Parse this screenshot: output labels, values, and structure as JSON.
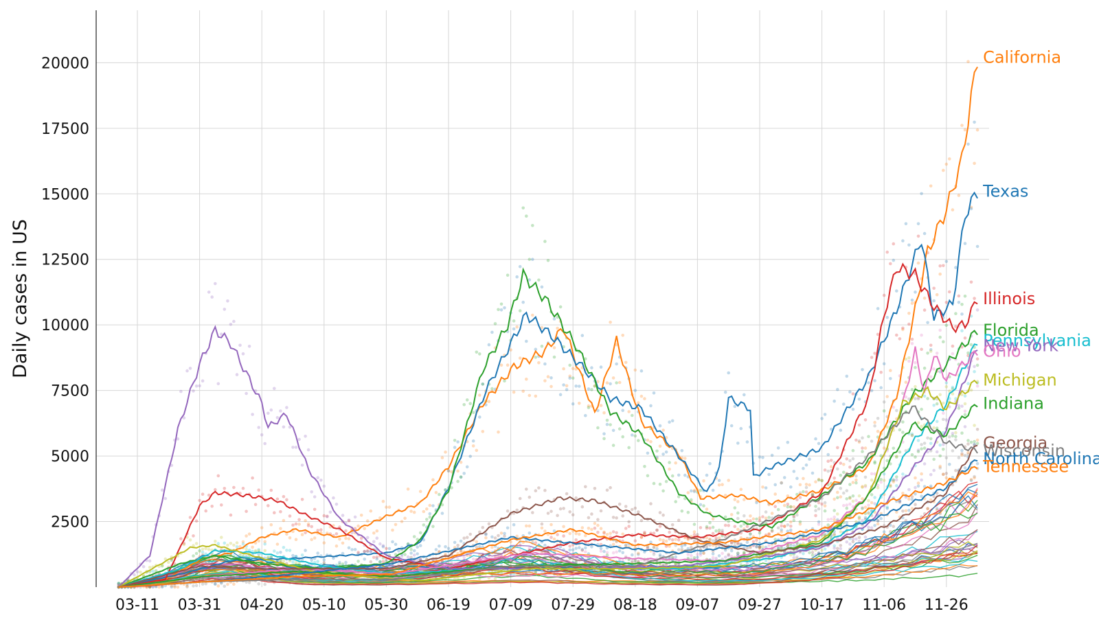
{
  "chart_data": {
    "type": "line",
    "title": "",
    "xlabel": "",
    "ylabel": "Daily cases in US",
    "x_dates": [
      "2020-03-05",
      "2020-12-06"
    ],
    "x_ticks": [
      "03-11",
      "03-31",
      "04-20",
      "05-10",
      "05-30",
      "06-19",
      "07-09",
      "07-29",
      "08-18",
      "09-07",
      "09-27",
      "10-17",
      "11-06",
      "11-26"
    ],
    "x_tick_dates": [
      "2020-03-11",
      "2020-03-31",
      "2020-04-20",
      "2020-05-10",
      "2020-05-30",
      "2020-06-19",
      "2020-07-09",
      "2020-07-29",
      "2020-08-18",
      "2020-09-07",
      "2020-09-27",
      "2020-10-17",
      "2020-11-06",
      "2020-11-26"
    ],
    "y_ticks": [
      "2500",
      "5000",
      "7500",
      "10000",
      "12500",
      "15000",
      "17500",
      "20000"
    ],
    "y_tick_values": [
      2500,
      5000,
      7500,
      10000,
      12500,
      15000,
      17500,
      20000
    ],
    "ylim": [
      0,
      22000
    ],
    "grid": true,
    "series": [
      {
        "name": "California",
        "color": "#ff7f0e",
        "points": [
          [
            "2020-03-05",
            0
          ],
          [
            "2020-03-20",
            300
          ],
          [
            "2020-04-01",
            1100
          ],
          [
            "2020-04-10",
            1300
          ],
          [
            "2020-04-20",
            1900
          ],
          [
            "2020-05-01",
            2200
          ],
          [
            "2020-05-15",
            1900
          ],
          [
            "2020-05-30",
            2700
          ],
          [
            "2020-06-10",
            3200
          ],
          [
            "2020-06-19",
            4600
          ],
          [
            "2020-06-30",
            7000
          ],
          [
            "2020-07-10",
            8400
          ],
          [
            "2020-07-20",
            9000
          ],
          [
            "2020-07-26",
            9900
          ],
          [
            "2020-08-05",
            6600
          ],
          [
            "2020-08-12",
            9400
          ],
          [
            "2020-08-20",
            6300
          ],
          [
            "2020-09-01",
            5100
          ],
          [
            "2020-09-08",
            3400
          ],
          [
            "2020-09-20",
            3500
          ],
          [
            "2020-10-01",
            3200
          ],
          [
            "2020-10-17",
            3700
          ],
          [
            "2020-11-01",
            4600
          ],
          [
            "2020-11-10",
            7300
          ],
          [
            "2020-11-20",
            12800
          ],
          [
            "2020-11-26",
            14400
          ],
          [
            "2020-12-01",
            16300
          ],
          [
            "2020-12-06",
            20200
          ]
        ]
      },
      {
        "name": "Texas",
        "color": "#1f77b4",
        "points": [
          [
            "2020-03-05",
            0
          ],
          [
            "2020-03-25",
            500
          ],
          [
            "2020-04-10",
            1000
          ],
          [
            "2020-05-01",
            1100
          ],
          [
            "2020-05-30",
            1300
          ],
          [
            "2020-06-10",
            1700
          ],
          [
            "2020-06-19",
            3800
          ],
          [
            "2020-07-01",
            7500
          ],
          [
            "2020-07-14",
            10400
          ],
          [
            "2020-07-22",
            9600
          ],
          [
            "2020-08-01",
            8400
          ],
          [
            "2020-08-10",
            7200
          ],
          [
            "2020-08-20",
            6800
          ],
          [
            "2020-09-01",
            5000
          ],
          [
            "2020-09-10",
            3600
          ],
          [
            "2020-09-14",
            4500
          ],
          [
            "2020-09-17",
            7200
          ],
          [
            "2020-09-24",
            6800
          ],
          [
            "2020-09-25",
            4200
          ],
          [
            "2020-10-01",
            4600
          ],
          [
            "2020-10-17",
            5300
          ],
          [
            "2020-11-01",
            8000
          ],
          [
            "2020-11-10",
            10600
          ],
          [
            "2020-11-18",
            13300
          ],
          [
            "2020-11-22",
            10300
          ],
          [
            "2020-11-28",
            10800
          ],
          [
            "2020-12-02",
            14200
          ],
          [
            "2020-12-06",
            15100
          ]
        ]
      },
      {
        "name": "Illinois",
        "color": "#d62728",
        "points": [
          [
            "2020-03-05",
            0
          ],
          [
            "2020-03-20",
            300
          ],
          [
            "2020-03-31",
            3100
          ],
          [
            "2020-04-05",
            3600
          ],
          [
            "2020-04-15",
            3500
          ],
          [
            "2020-04-25",
            3300
          ],
          [
            "2020-05-05",
            2700
          ],
          [
            "2020-05-15",
            2200
          ],
          [
            "2020-05-30",
            1100
          ],
          [
            "2020-06-19",
            700
          ],
          [
            "2020-07-09",
            1200
          ],
          [
            "2020-07-29",
            1700
          ],
          [
            "2020-08-18",
            2000
          ],
          [
            "2020-09-07",
            1900
          ],
          [
            "2020-09-27",
            2200
          ],
          [
            "2020-10-17",
            3600
          ],
          [
            "2020-11-01",
            7200
          ],
          [
            "2020-11-06",
            10400
          ],
          [
            "2020-11-10",
            12200
          ],
          [
            "2020-11-16",
            11900
          ],
          [
            "2020-11-22",
            10700
          ],
          [
            "2020-11-28",
            9900
          ],
          [
            "2020-12-02",
            10000
          ],
          [
            "2020-12-06",
            11000
          ]
        ]
      },
      {
        "name": "Florida",
        "color": "#2ca02c",
        "points": [
          [
            "2020-03-05",
            0
          ],
          [
            "2020-03-25",
            900
          ],
          [
            "2020-04-05",
            1200
          ],
          [
            "2020-04-20",
            900
          ],
          [
            "2020-05-10",
            700
          ],
          [
            "2020-05-30",
            900
          ],
          [
            "2020-06-10",
            1800
          ],
          [
            "2020-06-19",
            3700
          ],
          [
            "2020-06-30",
            8300
          ],
          [
            "2020-07-08",
            10000
          ],
          [
            "2020-07-13",
            11900
          ],
          [
            "2020-07-20",
            11000
          ],
          [
            "2020-07-30",
            9200
          ],
          [
            "2020-08-10",
            6700
          ],
          [
            "2020-08-20",
            5800
          ],
          [
            "2020-09-01",
            3600
          ],
          [
            "2020-09-10",
            2800
          ],
          [
            "2020-09-20",
            2500
          ],
          [
            "2020-10-01",
            2300
          ],
          [
            "2020-10-17",
            3500
          ],
          [
            "2020-11-01",
            4800
          ],
          [
            "2020-11-15",
            7300
          ],
          [
            "2020-11-26",
            8500
          ],
          [
            "2020-12-06",
            9800
          ]
        ]
      },
      {
        "name": "Pennsylvania",
        "color": "#17becf",
        "points": [
          [
            "2020-03-05",
            0
          ],
          [
            "2020-03-25",
            700
          ],
          [
            "2020-04-05",
            1400
          ],
          [
            "2020-04-20",
            1300
          ],
          [
            "2020-05-10",
            800
          ],
          [
            "2020-06-01",
            500
          ],
          [
            "2020-07-01",
            700
          ],
          [
            "2020-08-01",
            700
          ],
          [
            "2020-09-01",
            700
          ],
          [
            "2020-10-01",
            1100
          ],
          [
            "2020-10-17",
            1600
          ],
          [
            "2020-11-01",
            2600
          ],
          [
            "2020-11-15",
            5500
          ],
          [
            "2020-11-26",
            7000
          ],
          [
            "2020-12-06",
            9400
          ]
        ]
      },
      {
        "name": "New York",
        "color": "#9467bd",
        "points": [
          [
            "2020-03-05",
            0
          ],
          [
            "2020-03-15",
            1200
          ],
          [
            "2020-03-24",
            6000
          ],
          [
            "2020-03-31",
            8500
          ],
          [
            "2020-04-05",
            9800
          ],
          [
            "2020-04-10",
            9300
          ],
          [
            "2020-04-20",
            7000
          ],
          [
            "2020-04-22",
            6100
          ],
          [
            "2020-04-28",
            6600
          ],
          [
            "2020-05-05",
            4500
          ],
          [
            "2020-05-15",
            2600
          ],
          [
            "2020-05-30",
            1200
          ],
          [
            "2020-06-19",
            700
          ],
          [
            "2020-07-09",
            700
          ],
          [
            "2020-08-01",
            700
          ],
          [
            "2020-09-01",
            800
          ],
          [
            "2020-10-01",
            1200
          ],
          [
            "2020-10-17",
            1500
          ],
          [
            "2020-11-01",
            2400
          ],
          [
            "2020-11-15",
            4500
          ],
          [
            "2020-11-26",
            6000
          ],
          [
            "2020-12-06",
            9200
          ]
        ]
      },
      {
        "name": "Ohio",
        "color": "#e377c2",
        "points": [
          [
            "2020-03-05",
            0
          ],
          [
            "2020-04-01",
            400
          ],
          [
            "2020-05-01",
            700
          ],
          [
            "2020-06-01",
            500
          ],
          [
            "2020-07-15",
            1300
          ],
          [
            "2020-08-15",
            1100
          ],
          [
            "2020-09-15",
            1000
          ],
          [
            "2020-10-17",
            2000
          ],
          [
            "2020-11-01",
            3500
          ],
          [
            "2020-11-12",
            7000
          ],
          [
            "2020-11-16",
            9000
          ],
          [
            "2020-11-19",
            7400
          ],
          [
            "2020-11-22",
            8900
          ],
          [
            "2020-11-26",
            7900
          ],
          [
            "2020-12-06",
            9000
          ]
        ]
      },
      {
        "name": "Michigan",
        "color": "#bcbd22",
        "points": [
          [
            "2020-03-05",
            0
          ],
          [
            "2020-03-28",
            1500
          ],
          [
            "2020-04-05",
            1600
          ],
          [
            "2020-04-20",
            1100
          ],
          [
            "2020-05-10",
            500
          ],
          [
            "2020-06-10",
            250
          ],
          [
            "2020-07-15",
            700
          ],
          [
            "2020-08-15",
            700
          ],
          [
            "2020-09-15",
            800
          ],
          [
            "2020-10-17",
            1800
          ],
          [
            "2020-11-01",
            3500
          ],
          [
            "2020-11-12",
            7000
          ],
          [
            "2020-11-20",
            7500
          ],
          [
            "2020-11-26",
            6800
          ],
          [
            "2020-12-06",
            7900
          ]
        ]
      },
      {
        "name": "Indiana",
        "color": "#2ca02c",
        "points": [
          [
            "2020-03-05",
            0
          ],
          [
            "2020-04-01",
            400
          ],
          [
            "2020-05-01",
            600
          ],
          [
            "2020-06-01",
            400
          ],
          [
            "2020-07-09",
            800
          ],
          [
            "2020-08-18",
            900
          ],
          [
            "2020-09-15",
            1000
          ],
          [
            "2020-10-17",
            1700
          ],
          [
            "2020-11-01",
            3500
          ],
          [
            "2020-11-15",
            6200
          ],
          [
            "2020-11-26",
            5800
          ],
          [
            "2020-12-06",
            7000
          ]
        ]
      },
      {
        "name": "Georgia",
        "color": "#8c564b",
        "points": [
          [
            "2020-03-05",
            0
          ],
          [
            "2020-03-31",
            800
          ],
          [
            "2020-04-20",
            700
          ],
          [
            "2020-05-30",
            700
          ],
          [
            "2020-06-19",
            1200
          ],
          [
            "2020-07-09",
            2800
          ],
          [
            "2020-07-25",
            3400
          ],
          [
            "2020-08-05",
            3300
          ],
          [
            "2020-08-20",
            2700
          ],
          [
            "2020-09-07",
            1800
          ],
          [
            "2020-09-27",
            1300
          ],
          [
            "2020-10-17",
            1600
          ],
          [
            "2020-11-06",
            2300
          ],
          [
            "2020-11-26",
            3600
          ],
          [
            "2020-12-06",
            5500
          ]
        ]
      },
      {
        "name": "Wisconsin",
        "color": "#7f7f7f",
        "points": [
          [
            "2020-03-05",
            0
          ],
          [
            "2020-04-01",
            200
          ],
          [
            "2020-05-01",
            300
          ],
          [
            "2020-06-01",
            300
          ],
          [
            "2020-07-09",
            800
          ],
          [
            "2020-08-18",
            800
          ],
          [
            "2020-09-15",
            1800
          ],
          [
            "2020-10-17",
            3400
          ],
          [
            "2020-11-01",
            5000
          ],
          [
            "2020-11-15",
            6900
          ],
          [
            "2020-11-26",
            5500
          ],
          [
            "2020-12-06",
            5200
          ]
        ]
      },
      {
        "name": "North Carolina",
        "color": "#1f77b4",
        "points": [
          [
            "2020-03-05",
            0
          ],
          [
            "2020-04-01",
            200
          ],
          [
            "2020-05-01",
            500
          ],
          [
            "2020-06-01",
            900
          ],
          [
            "2020-07-09",
            1900
          ],
          [
            "2020-08-05",
            1600
          ],
          [
            "2020-09-01",
            1300
          ],
          [
            "2020-10-01",
            1700
          ],
          [
            "2020-11-01",
            2500
          ],
          [
            "2020-11-26",
            3800
          ],
          [
            "2020-12-06",
            4900
          ]
        ]
      },
      {
        "name": "Tennessee",
        "color": "#ff7f0e",
        "points": [
          [
            "2020-03-05",
            0
          ],
          [
            "2020-04-01",
            200
          ],
          [
            "2020-05-01",
            400
          ],
          [
            "2020-06-01",
            500
          ],
          [
            "2020-07-09",
            1800
          ],
          [
            "2020-07-29",
            2200
          ],
          [
            "2020-08-18",
            1600
          ],
          [
            "2020-09-15",
            1700
          ],
          [
            "2020-10-17",
            2200
          ],
          [
            "2020-11-06",
            3200
          ],
          [
            "2020-11-26",
            4000
          ],
          [
            "2020-12-06",
            4600
          ]
        ]
      }
    ]
  }
}
